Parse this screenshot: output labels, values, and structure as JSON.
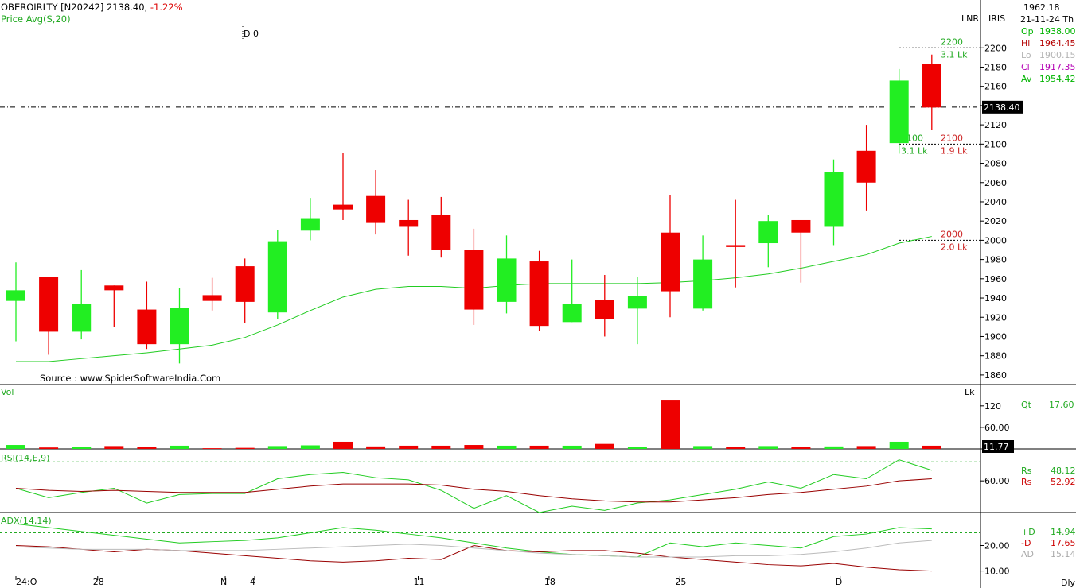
{
  "header": {
    "symbol": "OBEROIRLTY [N20242]",
    "last_price": "2138.40,",
    "change": "-1.22%",
    "indicator": "Price  Avg(S,20)",
    "marker": "D 0",
    "scale_mode": "LNR",
    "app_name": "IRIS",
    "source": "Source : www.SpiderSoftwareIndia.Com",
    "timeframe": "Dly",
    "cursor_value": "1962.18",
    "cursor_date": "21-11-24  Th"
  },
  "ohlc_panel": [
    {
      "label": "Op",
      "value": "1938.00",
      "color": "#00b400"
    },
    {
      "label": "Hi",
      "value": "1964.45",
      "color": "#b40000"
    },
    {
      "label": "Lo",
      "value": "1900.15",
      "color": "#b4b4b4"
    },
    {
      "label": "Cl",
      "value": "1917.35",
      "color": "#b400b4"
    },
    {
      "label": "Av",
      "value": "1954.42",
      "color": "#00b400"
    }
  ],
  "colors": {
    "up": "#22ee22",
    "down": "#ee0000",
    "avg": "#22cc22",
    "rsi_line": "#22cc22",
    "rsi_signal": "#990000",
    "pdi": "#22cc22",
    "mdi": "#990000",
    "adx": "#bbbbbb"
  },
  "chart_data": [
    {
      "type": "candlestick",
      "title": "OBEROIRLTY [N20242]",
      "ylim": [
        1850,
        2225
      ],
      "yticks": [
        1860,
        1880,
        1900,
        1920,
        1940,
        1960,
        1980,
        2000,
        2020,
        2040,
        2060,
        2080,
        2100,
        2120,
        2140,
        2160,
        2180,
        2200
      ],
      "last_price_line": 2138.4,
      "last_price_label": "2138.40",
      "x_labels": [
        {
          "index": 0,
          "label": "24:O"
        },
        {
          "index": 2.5,
          "label": "28"
        },
        {
          "index": 6.4,
          "label": "N"
        },
        {
          "index": 7.3,
          "label": "4"
        },
        {
          "index": 12.3,
          "label": "11"
        },
        {
          "index": 16.3,
          "label": "18"
        },
        {
          "index": 20.3,
          "label": "25"
        },
        {
          "index": 25.2,
          "label": "D"
        }
      ],
      "candles": [
        {
          "o": 1937,
          "h": 1977,
          "l": 1895,
          "c": 1948
        },
        {
          "o": 1962,
          "h": 1962,
          "l": 1881,
          "c": 1905
        },
        {
          "o": 1905,
          "h": 1969,
          "l": 1897,
          "c": 1934
        },
        {
          "o": 1953,
          "h": 1953,
          "l": 1910,
          "c": 1948
        },
        {
          "o": 1928,
          "h": 1957,
          "l": 1887,
          "c": 1892
        },
        {
          "o": 1892,
          "h": 1950,
          "l": 1872,
          "c": 1930
        },
        {
          "o": 1943,
          "h": 1961,
          "l": 1927,
          "c": 1937
        },
        {
          "o": 1973,
          "h": 1981,
          "l": 1914,
          "c": 1936
        },
        {
          "o": 1925,
          "h": 2011,
          "l": 1918,
          "c": 1999
        },
        {
          "o": 2010,
          "h": 2044,
          "l": 2000,
          "c": 2023
        },
        {
          "o": 2037,
          "h": 2091,
          "l": 2021,
          "c": 2032
        },
        {
          "o": 2046,
          "h": 2073,
          "l": 2006,
          "c": 2018
        },
        {
          "o": 2021,
          "h": 2042,
          "l": 1984,
          "c": 2014
        },
        {
          "o": 2026,
          "h": 2045,
          "l": 1982,
          "c": 1990
        },
        {
          "o": 1990,
          "h": 2012,
          "l": 1912,
          "c": 1928
        },
        {
          "o": 1936,
          "h": 2005,
          "l": 1924,
          "c": 1981
        },
        {
          "o": 1978,
          "h": 1989,
          "l": 1906,
          "c": 1911
        },
        {
          "o": 1915,
          "h": 1980,
          "l": 1915,
          "c": 1934
        },
        {
          "o": 1938,
          "h": 1964,
          "l": 1900,
          "c": 1918
        },
        {
          "o": 1929,
          "h": 1962,
          "l": 1892,
          "c": 1942
        },
        {
          "o": 2008,
          "h": 2047,
          "l": 1920,
          "c": 1947
        },
        {
          "o": 1929,
          "h": 2005,
          "l": 1927,
          "c": 1980
        },
        {
          "o": 1995,
          "h": 2042,
          "l": 1951,
          "c": 1993
        },
        {
          "o": 1997,
          "h": 2026,
          "l": 1972,
          "c": 2020
        },
        {
          "o": 2021,
          "h": 2021,
          "l": 1956,
          "c": 2008
        },
        {
          "o": 2014,
          "h": 2084,
          "l": 1995,
          "c": 2071
        },
        {
          "o": 2093,
          "h": 2120,
          "l": 2031,
          "c": 2060
        },
        {
          "o": 2101,
          "h": 2178,
          "l": 2090,
          "c": 2166
        },
        {
          "o": 2183,
          "h": 2193,
          "l": 2115,
          "c": 2138
        }
      ],
      "avg_line": [
        1874,
        1874,
        1877,
        1880,
        1883,
        1887,
        1891,
        1899,
        1912,
        1927,
        1941,
        1949,
        1952,
        1952,
        1950,
        1953,
        1955,
        1955,
        1955,
        1955,
        1956,
        1958,
        1961,
        1965,
        1971,
        1978,
        1985,
        1997,
        2004
      ],
      "levels": [
        {
          "price": 2200,
          "left_label": "2200",
          "left_sub": "3.1 Lk",
          "right_label": "",
          "right_sub": "",
          "color": "#22cc22"
        },
        {
          "price": 2100,
          "left_label": "2100",
          "left_sub": "3.1 Lk",
          "right_label": "2100",
          "right_sub": "1.9 Lk",
          "color": "#cc2222"
        },
        {
          "price": 2000,
          "left_label": "",
          "left_sub": "",
          "right_label": "2000",
          "right_sub": "2.0 Lk",
          "color": "#cc2222"
        }
      ]
    },
    {
      "type": "bar",
      "title": "Vol",
      "unit": "Lk",
      "ylim": [
        0,
        175
      ],
      "yticks": [
        60,
        120
      ],
      "ytick_labels": [
        "60.00",
        "120"
      ],
      "current_label": "11.77",
      "qt_label": "Qt",
      "qt_value": "17.60",
      "values": [
        11,
        4,
        6,
        8,
        6,
        9,
        2,
        3,
        8,
        10,
        20,
        7,
        9,
        9,
        11,
        9,
        9,
        9,
        14,
        5,
        135,
        8,
        6,
        8,
        6,
        7,
        8,
        20,
        9
      ]
    },
    {
      "type": "line",
      "title": "RSI(14,E,9)",
      "ylim": [
        30,
        88
      ],
      "yticks": [
        60
      ],
      "ytick_labels": [
        "60.00"
      ],
      "ref_line": 78,
      "series": [
        {
          "name": "Rs",
          "display_value": "48.12",
          "values": [
            53,
            44,
            49,
            53,
            39,
            47,
            48,
            48,
            62,
            66,
            68,
            63,
            61,
            51,
            34,
            46,
            30,
            36,
            32,
            39,
            42,
            47,
            52,
            59,
            53,
            66,
            62,
            80,
            70
          ]
        },
        {
          "name": "Rs",
          "display_value": "52.92",
          "values": [
            53,
            51,
            50,
            51,
            50,
            49,
            49,
            49,
            52,
            55,
            57,
            57,
            57,
            56,
            52,
            50,
            46,
            43,
            41,
            40,
            40,
            42,
            44,
            47,
            49,
            52,
            55,
            60,
            62
          ]
        }
      ]
    },
    {
      "type": "line",
      "title": "ADX(14,14)",
      "ylim": [
        8,
        32
      ],
      "yticks": [
        10,
        20
      ],
      "ytick_labels": [
        "10.00",
        "20.00"
      ],
      "ref_line": 25,
      "series": [
        {
          "name": "+D",
          "display_value": "14.94",
          "values": [
            28.5,
            27,
            25.5,
            24,
            22.5,
            21,
            21.5,
            22,
            23,
            25,
            27,
            26,
            24.5,
            23,
            21,
            19,
            17.5,
            16.5,
            16,
            15.5,
            21,
            19.5,
            21,
            20,
            19,
            23.5,
            24.5,
            27,
            26.5
          ]
        },
        {
          "name": "-D",
          "display_value": "17.65",
          "values": [
            20,
            19.5,
            18.5,
            17.5,
            18.5,
            18,
            17,
            16,
            15,
            14,
            13.5,
            14,
            15,
            14.5,
            20,
            18,
            17.5,
            18,
            18,
            17,
            15.5,
            14.5,
            13.5,
            12.5,
            12,
            13,
            11.5,
            10.5,
            10
          ]
        },
        {
          "name": "AD",
          "display_value": "15.14",
          "values": [
            19.5,
            19,
            18.5,
            18.5,
            18.5,
            18,
            18,
            18,
            18.5,
            19,
            19.5,
            20,
            20.5,
            20,
            19,
            18,
            17,
            16.5,
            16,
            15.5,
            15.5,
            15.5,
            16,
            16,
            16.5,
            17.5,
            19,
            21,
            22
          ]
        }
      ]
    }
  ]
}
